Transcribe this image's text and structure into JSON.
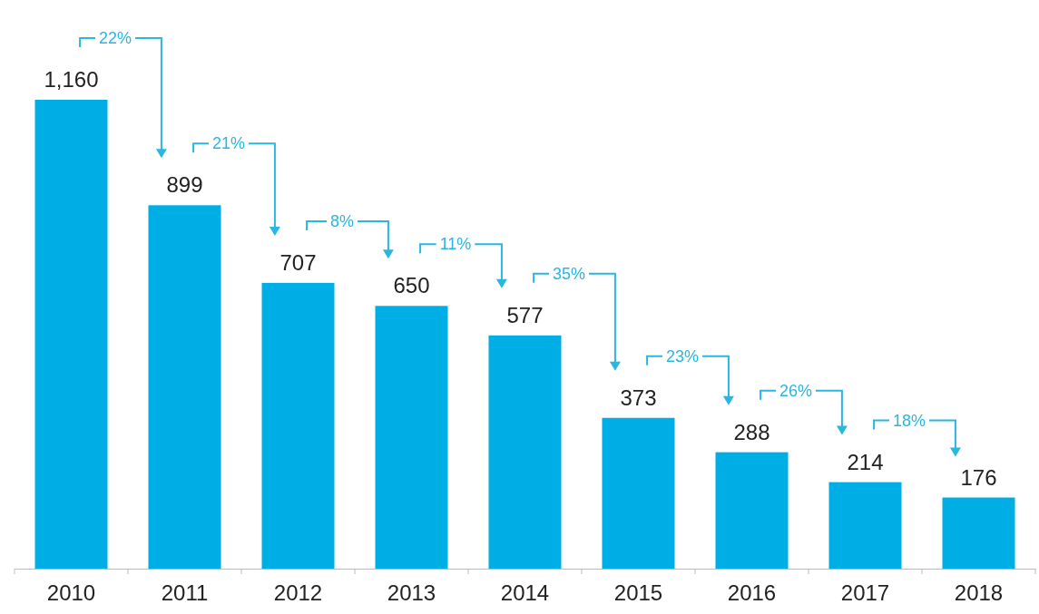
{
  "chart_data": {
    "type": "bar",
    "categories": [
      "2010",
      "2011",
      "2012",
      "2013",
      "2014",
      "2015",
      "2016",
      "2017",
      "2018"
    ],
    "values": [
      1160,
      899,
      707,
      650,
      577,
      373,
      288,
      214,
      176
    ],
    "value_labels": [
      "1,160",
      "899",
      "707",
      "650",
      "577",
      "373",
      "288",
      "214",
      "176"
    ],
    "color": "#00aee6",
    "annotations": [
      "22%",
      "21%",
      "8%",
      "11%",
      "35%",
      "23%",
      "26%",
      "18%"
    ]
  }
}
